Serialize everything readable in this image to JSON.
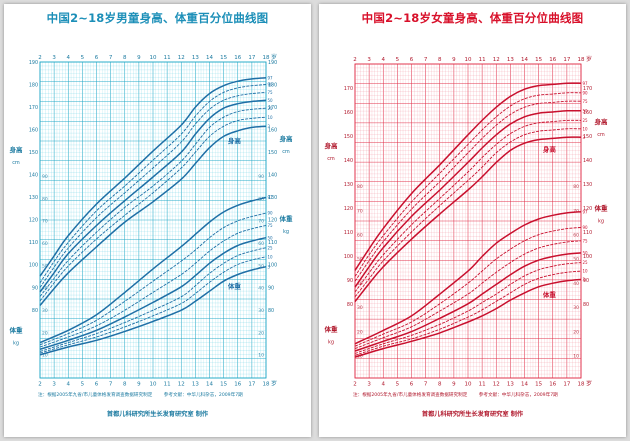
{
  "chart_data": [
    {
      "type": "line",
      "title": "中国2~18岁男童身高、体重百分位曲线图",
      "colors": {
        "grid": "#46c6dc",
        "major": "#1ea7c6",
        "curve": "#1f6fa6",
        "text": "#1b7aa0",
        "paper": "#ffffff"
      },
      "x_ticks": [
        "2",
        "3",
        "4",
        "5",
        "6",
        "7",
        "8",
        "9",
        "10",
        "11",
        "12",
        "13",
        "14",
        "15",
        "16",
        "17",
        "18"
      ],
      "x_unit": "岁",
      "xlim": [
        2,
        18
      ],
      "height": {
        "label": "身高",
        "unit": "cm",
        "ylim": [
          80,
          190
        ],
        "y_ticks": [
          "80",
          "90",
          "100",
          "110",
          "120",
          "130",
          "140",
          "150",
          "160",
          "170",
          "180",
          "190"
        ],
        "ages": [
          2,
          3,
          4,
          6,
          8,
          10,
          12,
          13,
          14,
          15,
          16,
          17,
          18
        ],
        "series": [
          {
            "name": "3rd",
            "values": [
              82,
              89.5,
              96.5,
              108,
              119,
              128,
              138,
              145,
              152,
              157,
              159.5,
              161,
              161.5
            ]
          },
          {
            "name": "10th",
            "values": [
              84,
              92,
              99.5,
              111.5,
              122,
              132,
              143,
              150,
              157,
              161.5,
              164,
              165,
              165.5
            ]
          },
          {
            "name": "25th",
            "values": [
              86,
              94,
              102,
              114.5,
              125.5,
              135,
              146,
              153.5,
              161,
              165.5,
              168,
              169,
              169.5
            ]
          },
          {
            "name": "50th",
            "values": [
              88,
              96.5,
              105,
              117.5,
              128.5,
              139,
              150,
              158,
              165,
              169.5,
              171.5,
              172.5,
              173
            ]
          },
          {
            "name": "75th",
            "values": [
              90,
              99,
              107.5,
              121,
              132,
              143,
              154.5,
              162.5,
              169,
              173,
              175,
              176,
              176.5
            ]
          },
          {
            "name": "90th",
            "values": [
              92,
              101.5,
              110,
              124,
              135,
              146.5,
              158,
              166,
              172.5,
              176.5,
              178.5,
              179.5,
              180
            ]
          },
          {
            "name": "97th",
            "values": [
              95,
              104,
              113,
              127,
              138.5,
              150.5,
              162,
              170,
              176,
              179.5,
              181.5,
              182.5,
              183
            ]
          }
        ]
      },
      "weight": {
        "label": "体重",
        "unit": "kg",
        "ylim": [
          5,
          100
        ],
        "y_ticks": [
          "10",
          "20",
          "30",
          "40",
          "50",
          "60",
          "70",
          "80",
          "90"
        ],
        "ages": [
          2,
          4,
          6,
          8,
          10,
          12,
          13,
          14,
          15,
          16,
          17,
          18
        ],
        "series": [
          {
            "name": "3rd",
            "values": [
              10,
              13.5,
              16.5,
              20.5,
              25,
              30,
              34,
              38.5,
              43,
              46,
              48,
              49.5
            ]
          },
          {
            "name": "10th",
            "values": [
              10.8,
              14.5,
              18,
              22.5,
              27.5,
              33,
              37.5,
              42.5,
              47,
              50.5,
              52.5,
              54
            ]
          },
          {
            "name": "25th",
            "values": [
              11.5,
              15.5,
              19.5,
              24.5,
              30,
              36,
              41,
              46.5,
              51,
              54.5,
              56.5,
              58
            ]
          },
          {
            "name": "50th",
            "values": [
              12.5,
              16.5,
              21,
              27,
              33.5,
              40.5,
              45.5,
              51,
              55.5,
              59,
              61,
              62.5
            ]
          },
          {
            "name": "75th",
            "values": [
              13.5,
              18,
              23,
              30,
              38,
              46,
              51,
              56.5,
              61,
              64.5,
              66.5,
              68
            ]
          },
          {
            "name": "90th",
            "values": [
              14.5,
              19.5,
              25.5,
              34,
              43,
              52,
              57,
              62.5,
              67,
              70,
              72,
              73.5
            ]
          },
          {
            "name": "97th",
            "values": [
              15.5,
              21,
              28,
              38,
              48.5,
              58.5,
              64,
              69.5,
              74,
              77,
              79,
              80.5
            ]
          }
        ]
      },
      "notes": [
        "注：根据2005年九省/市儿童体格发育调查数据研究制定",
        "参考文献：中华儿科杂志，2009年7期"
      ],
      "credit": "首都儿科研究所生长发育研究室  制作"
    },
    {
      "type": "line",
      "title": "中国2~18岁女童身高、体重百分位曲线图",
      "colors": {
        "grid": "#f07a8a",
        "major": "#e02a44",
        "curve": "#c8102e",
        "text": "#b0182c",
        "paper": "#ffffff"
      },
      "x_ticks": [
        "2",
        "3",
        "4",
        "5",
        "6",
        "7",
        "8",
        "9",
        "10",
        "11",
        "12",
        "13",
        "14",
        "15",
        "16",
        "17",
        "18"
      ],
      "x_unit": "岁",
      "xlim": [
        2,
        18
      ],
      "height": {
        "label": "身高",
        "unit": "cm",
        "ylim": [
          80,
          180
        ],
        "y_ticks": [
          "80",
          "90",
          "100",
          "110",
          "120",
          "130",
          "140",
          "150",
          "160",
          "170"
        ],
        "ages": [
          2,
          3,
          4,
          6,
          8,
          10,
          11,
          12,
          13,
          14,
          15,
          16,
          17,
          18
        ],
        "series": [
          {
            "name": "3rd",
            "values": [
              81,
              88.5,
              95.5,
              107,
              117.5,
              127.5,
              133,
              139,
              144,
              147,
              148.5,
              149,
              149.5,
              149.5
            ]
          },
          {
            "name": "10th",
            "values": [
              83,
              90.5,
              98,
              110,
              121,
              131.5,
              137,
              143,
              147.5,
              150.5,
              152,
              152.5,
              153,
              153
            ]
          },
          {
            "name": "25th",
            "values": [
              85,
              93,
              100.5,
              113,
              124,
              135,
              141,
              146.5,
              151,
              154,
              155.5,
              156,
              156.5,
              156.5
            ]
          },
          {
            "name": "50th",
            "values": [
              87,
              95.5,
              103.5,
              116.5,
              127.5,
              139,
              145,
              150.5,
              155,
              158,
              159.5,
              160,
              160.5,
              160.5
            ]
          },
          {
            "name": "75th",
            "values": [
              89.5,
              98,
              106,
              119.5,
              131,
              143,
              149,
              154.5,
              159,
              162,
              163.5,
              164,
              164.5,
              164.5
            ]
          },
          {
            "name": "90th",
            "values": [
              91.5,
              100.5,
              108.5,
              122.5,
              134.5,
              146.5,
              152.5,
              158,
              162.5,
              165.5,
              167,
              167.5,
              168,
              168
            ]
          },
          {
            "name": "97th",
            "values": [
              94,
              103,
              111.5,
              126,
              138,
              150.5,
              156.5,
              162,
              166.5,
              169.5,
              171,
              171.5,
              172,
              172
            ]
          }
        ]
      },
      "weight": {
        "label": "体重",
        "unit": "kg",
        "ylim": [
          5,
          90
        ],
        "y_ticks": [
          "10",
          "20",
          "30",
          "40",
          "50",
          "60",
          "70",
          "80"
        ],
        "ages": [
          2,
          4,
          6,
          8,
          10,
          11,
          12,
          13,
          14,
          15,
          16,
          17,
          18
        ],
        "series": [
          {
            "name": "3rd",
            "values": [
              9.5,
              13,
              16,
              19.5,
              24,
              26.5,
              29.5,
              33,
              36,
              38.5,
              40,
              41,
              41.5
            ]
          },
          {
            "name": "10th",
            "values": [
              10.2,
              14,
              17,
              21,
              26,
              29,
              32.5,
              36,
              39.5,
              42,
              43.5,
              44.5,
              45
            ]
          },
          {
            "name": "25th",
            "values": [
              11,
              15,
              18.5,
              23,
              28.5,
              32,
              35.5,
              39.5,
              43,
              45.5,
              47,
              48,
              48.5
            ]
          },
          {
            "name": "50th",
            "values": [
              12,
              16,
              20,
              25.5,
              31.5,
              35.5,
              39.5,
              43.5,
              47,
              49.5,
              51,
              52,
              52.5
            ]
          },
          {
            "name": "75th",
            "values": [
              13,
              17.5,
              22,
              28.5,
              35.5,
              40,
              44.5,
              48.5,
              52,
              54.5,
              56,
              57,
              57.5
            ]
          },
          {
            "name": "90th",
            "values": [
              14,
              19,
              24,
              31.5,
              40,
              45,
              50,
              54,
              57.5,
              60,
              61.5,
              62.5,
              63
            ]
          },
          {
            "name": "97th",
            "values": [
              15,
              20.5,
              26.5,
              35.5,
              45,
              51,
              56.5,
              60.5,
              64,
              66.5,
              68,
              69,
              69.5
            ]
          }
        ]
      },
      "notes": [
        "注：根据2005年九省/市儿童体格发育调查数据研究制定",
        "参考文献：中华儿科杂志，2009年7期"
      ],
      "credit": "首都儿科研究所生长发育研究室  制作"
    }
  ]
}
